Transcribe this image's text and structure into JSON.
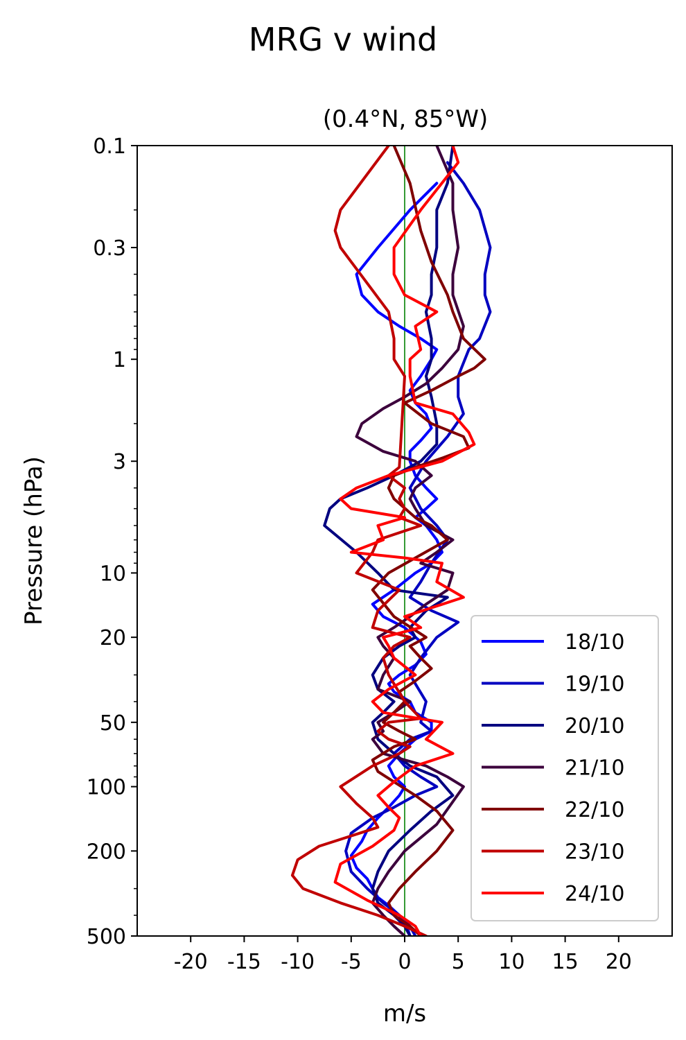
{
  "chart_data": {
    "type": "line",
    "title": "MRG v wind",
    "subtitle": "(0.4°N, 85°W)",
    "xlabel": "m/s",
    "ylabel": "Pressure (hPa)",
    "xlim": [
      -25,
      25
    ],
    "ylim": [
      500,
      0.1
    ],
    "yscale": "log",
    "xticks": [
      -20,
      -15,
      -10,
      -5,
      0,
      5,
      10,
      15,
      20
    ],
    "xtick_labels": [
      "-20",
      "-15",
      "-10",
      "-5",
      "0",
      "5",
      "10",
      "15",
      "20"
    ],
    "yticks": [
      0.1,
      0.3,
      1,
      3,
      10,
      20,
      50,
      100,
      200,
      500
    ],
    "ytick_labels": [
      "0.1",
      "0.3",
      "1",
      "3",
      "10",
      "20",
      "50",
      "100",
      "200",
      "500"
    ],
    "reference_line": {
      "x": 0,
      "color": "#008000"
    },
    "legend_position": "lower-right",
    "grid": false,
    "series": [
      {
        "name": "18/10",
        "color": "#0000ff",
        "x": [
          0.5,
          0.2,
          -0.5,
          -1.5,
          -2.5,
          -3.0,
          -3.5,
          -4.5,
          -5.0,
          -4.0,
          -3.5,
          -2.5,
          -1.5,
          -0.5,
          0.0,
          -1.0,
          -1.5,
          -0.5,
          1.0,
          2.5,
          2.5,
          1.0,
          0.5,
          -1.0,
          -1.5,
          -0.5,
          1.0,
          2.0,
          1.5,
          0.0,
          -2.0,
          -3.0,
          -1.0,
          1.0,
          2.5,
          3.5,
          3.0,
          2.0,
          1.0,
          2.0,
          3.0,
          2.0,
          1.0,
          0.5,
          0.5,
          1.5,
          2.5,
          2.0,
          1.0,
          0.5,
          1.5,
          2.5,
          3.0,
          1.5,
          -0.5,
          -2.5,
          -4.0,
          -4.5,
          -2.5,
          0.5,
          3.0
        ],
        "p": [
          500,
          450,
          400,
          360,
          330,
          300,
          270,
          240,
          210,
          180,
          160,
          140,
          125,
          110,
          100,
          90,
          80,
          70,
          60,
          55,
          50,
          45,
          40,
          36,
          33,
          30,
          27,
          24,
          21,
          18,
          16,
          14,
          12,
          10,
          9,
          8,
          7,
          6,
          5.5,
          5,
          4.5,
          4,
          3.5,
          3,
          2.7,
          2.4,
          2.1,
          1.8,
          1.6,
          1.4,
          1.2,
          1.0,
          0.9,
          0.8,
          0.7,
          0.6,
          0.5,
          0.4,
          0.3,
          0.2,
          0.15
        ]
      },
      {
        "name": "19/10",
        "color": "#0000c0",
        "x": [
          1.0,
          0.5,
          -0.5,
          -2.0,
          -3.5,
          -5.0,
          -5.5,
          -5.0,
          -3.0,
          -1.0,
          1.0,
          3.0,
          1.5,
          0.0,
          -1.0,
          0.5,
          2.5,
          1.5,
          2.0,
          0.5,
          1.5,
          3.0,
          5.0,
          2.5,
          0.5,
          1.5,
          2.5,
          4.0,
          3.0,
          1.5,
          0.5,
          2.0,
          4.0,
          5.5,
          5.0,
          5.0,
          6.0,
          7.0,
          8.0,
          7.5,
          7.5,
          8.0,
          7.0,
          5.5,
          4.0
        ],
        "p": [
          500,
          450,
          400,
          350,
          300,
          250,
          200,
          165,
          140,
          125,
          110,
          100,
          90,
          80,
          70,
          60,
          55,
          50,
          40,
          30,
          25,
          20,
          17,
          15,
          13,
          11,
          9,
          7,
          6,
          5,
          4,
          3,
          2.3,
          1.8,
          1.5,
          1.2,
          0.9,
          0.8,
          0.6,
          0.5,
          0.4,
          0.3,
          0.2,
          0.15,
          0.12
        ]
      },
      {
        "name": "20/10",
        "color": "#000080",
        "x": [
          0.5,
          0.0,
          -1.0,
          -2.5,
          -3.0,
          -2.5,
          -1.5,
          0.5,
          2.5,
          4.5,
          3.0,
          0.5,
          -1.0,
          -2.5,
          -3.0,
          -2.0,
          -1.0,
          -2.5,
          -3.0,
          -2.0,
          -0.5,
          1.0,
          0.5,
          2.0,
          4.0,
          -1.0,
          -2.5,
          -4.5,
          -7.5,
          -7.0,
          -6.0,
          -3.5,
          -1.0,
          1.5,
          3.0,
          3.0,
          2.5,
          2.0,
          2.5,
          2.5,
          2.0,
          2.5,
          2.5,
          3.0,
          3.0,
          4.0,
          4.5
        ],
        "p": [
          500,
          450,
          400,
          350,
          300,
          250,
          200,
          160,
          130,
          110,
          90,
          80,
          70,
          60,
          50,
          45,
          40,
          35,
          30,
          25,
          22,
          20,
          18,
          15,
          13,
          12,
          10,
          8,
          6,
          5,
          4.5,
          4,
          3.5,
          3,
          2.5,
          2,
          1.5,
          1.2,
          1.0,
          0.8,
          0.6,
          0.5,
          0.4,
          0.3,
          0.2,
          0.15,
          0.1
        ]
      },
      {
        "name": "21/10",
        "color": "#3c003c",
        "x": [
          0.0,
          -1.0,
          -2.0,
          -3.0,
          -2.5,
          -1.5,
          0.0,
          3.0,
          5.5,
          4.0,
          2.0,
          0.0,
          -2.0,
          -3.0,
          -2.0,
          -2.5,
          -1.0,
          0.5,
          -2.5,
          -2.0,
          -1.0,
          -2.0,
          -2.5,
          -1.0,
          0.5,
          2.0,
          4.0,
          4.5,
          1.5,
          3.0,
          4.5,
          2.0,
          1.0,
          0.5,
          1.0,
          2.5,
          1.0,
          -2.0,
          -4.5,
          -4.0,
          -2.0,
          0.0,
          2.0,
          3.5,
          5.0,
          5.5,
          4.5,
          4.5,
          5.0,
          4.5,
          4.5,
          3.0
        ],
        "p": [
          500,
          450,
          400,
          350,
          300,
          250,
          200,
          150,
          100,
          90,
          80,
          75,
          70,
          60,
          55,
          50,
          45,
          40,
          35,
          30,
          25,
          22,
          20,
          18,
          16,
          14,
          12,
          10,
          9,
          8,
          7,
          6,
          5,
          4.5,
          4,
          3.5,
          3,
          2.7,
          2.3,
          2.0,
          1.7,
          1.5,
          1.3,
          1.1,
          0.9,
          0.7,
          0.5,
          0.4,
          0.3,
          0.2,
          0.15,
          0.1
        ]
      },
      {
        "name": "22/10",
        "color": "#800000",
        "x": [
          1.5,
          0.5,
          -1.0,
          -1.5,
          -0.5,
          1.0,
          3.0,
          4.5,
          3.0,
          1.0,
          -1.0,
          -2.5,
          -3.0,
          -1.0,
          1.0,
          -0.5,
          -2.0,
          -1.0,
          0.0,
          -0.5,
          1.0,
          2.5,
          1.5,
          0.5,
          2.0,
          -1.0,
          -3.0,
          -1.5,
          1.0,
          4.0,
          2.5,
          1.0,
          -1.0,
          -1.5,
          -1.0,
          1.0,
          3.5,
          6.0,
          5.5,
          2.5,
          0.0,
          2.5,
          5.0,
          6.5,
          7.5,
          5.5,
          4.5,
          4.0,
          2.5,
          1.5,
          0.5,
          -1.0
        ],
        "p": [
          500,
          450,
          400,
          350,
          300,
          250,
          200,
          160,
          130,
          110,
          95,
          85,
          75,
          65,
          60,
          55,
          50,
          45,
          40,
          36,
          32,
          28,
          25,
          22,
          20,
          16,
          12,
          10,
          8.5,
          7,
          6,
          5.5,
          4.5,
          4,
          3.5,
          3.2,
          2.9,
          2.6,
          2.3,
          2.0,
          1.6,
          1.4,
          1.2,
          1.1,
          1.0,
          0.8,
          0.6,
          0.5,
          0.35,
          0.25,
          0.15,
          0.1
        ]
      },
      {
        "name": "23/10",
        "color": "#c00000",
        "x": [
          2.0,
          0.0,
          -2.5,
          -6.0,
          -9.5,
          -10.5,
          -10.0,
          -8.0,
          -5.0,
          -2.5,
          -3.0,
          -4.5,
          -6.0,
          -3.0,
          -0.5,
          0.5,
          -1.5,
          -2.5,
          -1.5,
          1.5,
          0.0,
          -1.5,
          -2.0,
          -1.0,
          0.5,
          -3.0,
          -2.5,
          -0.5,
          -4.5,
          -3.0,
          -2.5,
          1.5,
          -0.5,
          0.0,
          -0.5,
          0.0,
          -1.5,
          -0.5,
          0.0,
          -1.0,
          -1.0,
          -1.5,
          -6.0,
          -6.5,
          -6.0,
          -1.5
        ],
        "p": [
          500,
          450,
          400,
          350,
          300,
          260,
          220,
          190,
          170,
          155,
          140,
          120,
          100,
          80,
          70,
          65,
          60,
          55,
          50,
          48,
          40,
          30,
          25,
          22,
          20,
          18,
          15,
          12,
          10,
          8,
          7,
          6,
          5.5,
          5,
          4.5,
          4,
          3.5,
          3.2,
          1.2,
          1.0,
          0.8,
          0.6,
          0.3,
          0.25,
          0.2,
          0.1
        ]
      },
      {
        "name": "24/10",
        "color": "#ff0000",
        "x": [
          1.5,
          1.0,
          -0.5,
          -3.5,
          -6.5,
          -6.0,
          -3.0,
          -1.0,
          -0.5,
          -1.5,
          -2.5,
          -1.0,
          1.0,
          4.5,
          2.0,
          3.5,
          -2.0,
          -3.0,
          -1.5,
          1.0,
          -1.0,
          -1.5,
          -2.0,
          1.5,
          0.0,
          5.5,
          3.0,
          3.5,
          0.0,
          -5.0,
          -2.0,
          -2.5,
          0.0,
          -5.0,
          -6.0,
          -4.5,
          -1.5,
          3.5,
          6.5,
          6.0,
          4.5,
          1.0,
          0.5,
          0.5,
          1.5,
          1.0,
          3.0,
          0.0,
          -1.0,
          -1.0,
          1.5,
          5.0,
          4.5
        ],
        "p": [
          500,
          450,
          400,
          340,
          280,
          230,
          190,
          160,
          140,
          125,
          110,
          95,
          80,
          70,
          60,
          50,
          45,
          40,
          35,
          30,
          25,
          22,
          20,
          18,
          16,
          13,
          11,
          9,
          8.5,
          8,
          7,
          6,
          5.5,
          5,
          4.5,
          4,
          3.5,
          3,
          2.5,
          2.2,
          1.8,
          1.6,
          1.2,
          1.0,
          0.9,
          0.7,
          0.6,
          0.5,
          0.4,
          0.3,
          0.2,
          0.12,
          0.1
        ]
      }
    ]
  }
}
